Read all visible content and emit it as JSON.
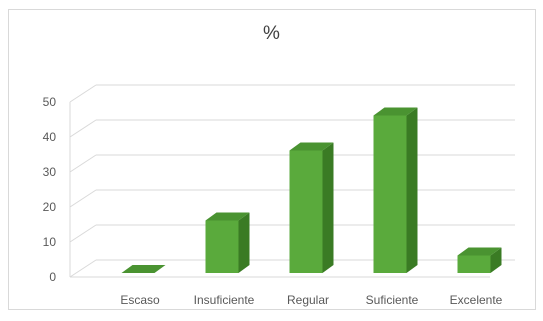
{
  "chart_data": {
    "type": "bar",
    "title": "%",
    "categories": [
      "Escaso",
      "Insuficiente",
      "Regular",
      "Suficiente",
      "Excelente"
    ],
    "values": [
      0,
      15,
      35,
      45,
      5
    ],
    "ylim": [
      0,
      50
    ],
    "yticks": [
      0,
      10,
      20,
      30,
      40,
      50
    ],
    "grid": true,
    "legend": "none",
    "colors": {
      "bar_front": "#5aaa3c",
      "bar_side": "#3a7b24",
      "bar_top": "#4a9331",
      "grid": "#d9d9d9",
      "axis": "#a6a6a6"
    }
  }
}
